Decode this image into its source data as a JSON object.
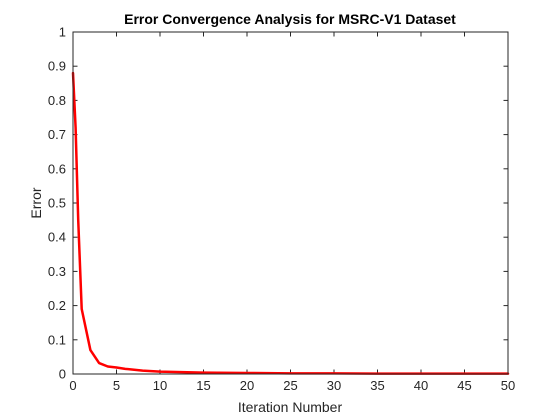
{
  "chart_data": {
    "type": "line",
    "title": "Error Convergence Analysis for MSRC-V1 Dataset",
    "xlabel": "Iteration Number",
    "ylabel": "Error",
    "xlim": [
      0,
      50
    ],
    "ylim": [
      0,
      1
    ],
    "x_ticks": [
      "0",
      "5",
      "10",
      "15",
      "20",
      "25",
      "30",
      "35",
      "40",
      "45",
      "50"
    ],
    "y_ticks": [
      "0",
      "0.1",
      "0.2",
      "0.3",
      "0.4",
      "0.5",
      "0.6",
      "0.7",
      "0.8",
      "0.9",
      "1"
    ],
    "grid": false,
    "legend": "none",
    "series": [
      {
        "color": "#ff0000",
        "x": [
          0,
          0.3,
          0.6,
          1,
          2,
          3,
          4,
          5,
          6,
          8,
          10,
          15,
          20,
          25,
          30,
          35,
          40,
          45,
          50
        ],
        "y": [
          0.88,
          0.72,
          0.45,
          0.19,
          0.07,
          0.032,
          0.022,
          0.019,
          0.015,
          0.01,
          0.007,
          0.004,
          0.003,
          0.002,
          0.002,
          0.001,
          0.001,
          0.001,
          0.001
        ]
      }
    ]
  }
}
